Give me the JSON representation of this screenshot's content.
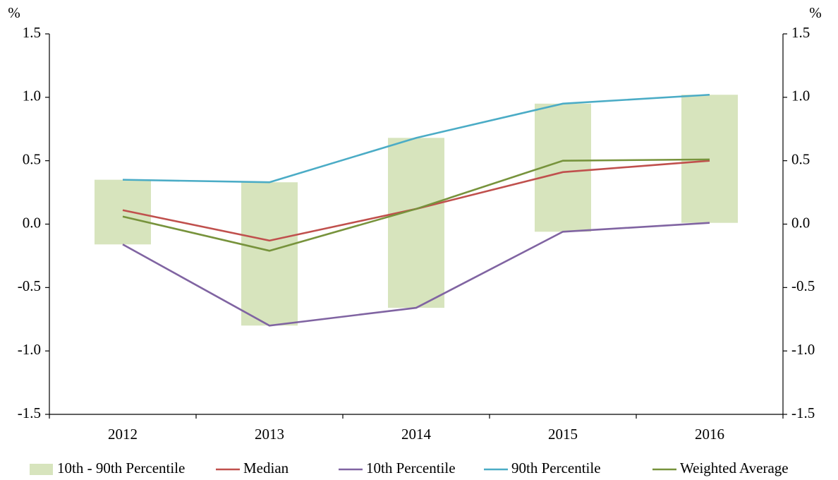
{
  "chart_data": {
    "type": "line",
    "y_unit": "%",
    "y2_unit": "%",
    "categories": [
      "2012",
      "2013",
      "2014",
      "2015",
      "2016"
    ],
    "series": [
      {
        "name": "10th - 90th Percentile",
        "color": "#d7e4bd",
        "type": "range"
      },
      {
        "name": "Median",
        "color": "#c0504d",
        "type": "line",
        "values": [
          0.11,
          -0.13,
          0.12,
          0.41,
          0.5
        ]
      },
      {
        "name": "10th Percentile",
        "color": "#8064a2",
        "type": "line",
        "values": [
          -0.16,
          -0.8,
          -0.66,
          -0.06,
          0.01
        ]
      },
      {
        "name": "90th Percentile",
        "color": "#4bacc6",
        "type": "line",
        "values": [
          0.35,
          0.33,
          0.68,
          0.95,
          1.02
        ]
      },
      {
        "name": "Weighted Average",
        "color": "#77933c",
        "type": "line",
        "values": [
          0.06,
          -0.21,
          0.12,
          0.5,
          0.51
        ]
      }
    ],
    "ylim": [
      -1.5,
      1.5
    ],
    "yticks": [
      -1.5,
      {
        "value": -1,
        "label": "-1.0"
      },
      -0.5,
      {
        "value": 0,
        "label": "0.0"
      },
      0.5,
      {
        "value": 1,
        "label": "1.0"
      },
      1.5
    ],
    "y2lim": [
      -1.5,
      1.5
    ],
    "y2ticks": [
      -1.5,
      {
        "value": -1,
        "label": "-1.0"
      },
      -0.5,
      {
        "value": 0,
        "label": "0.0"
      },
      0.5,
      {
        "value": 1,
        "label": "1.0"
      },
      1.5
    ],
    "grid": false,
    "legend": "bottom"
  }
}
